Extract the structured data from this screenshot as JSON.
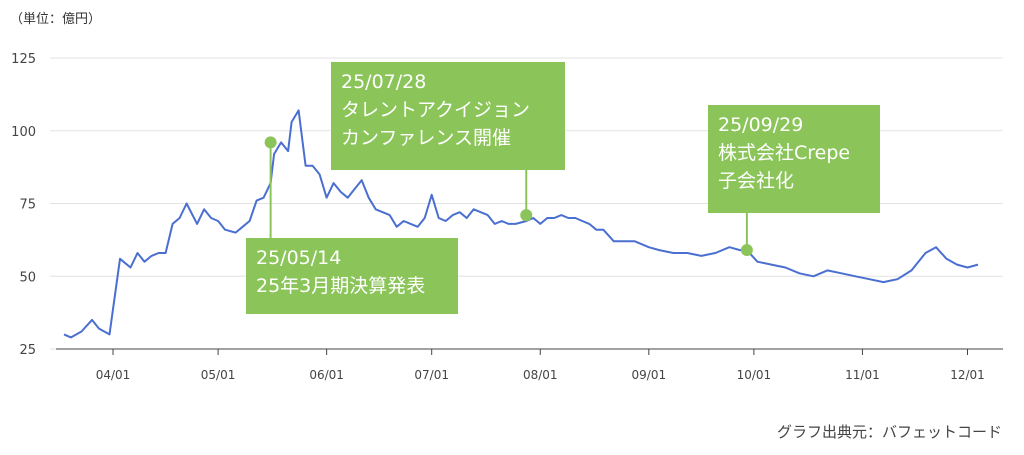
{
  "chart_data": {
    "type": "line",
    "unit_label": "（単位：億円）",
    "source": "グラフ出典元：バフェットコード",
    "ylim": [
      25,
      125
    ],
    "yticks": [
      25,
      50,
      75,
      100,
      125
    ],
    "xticks": [
      "04/01",
      "05/01",
      "06/01",
      "07/01",
      "08/01",
      "09/01",
      "10/01",
      "11/01",
      "12/01"
    ],
    "grid": true,
    "line_color": "#4a6fd0",
    "callout_color": "#8bc55a",
    "series": [
      {
        "x": [
          "03/18",
          "03/20",
          "03/23",
          "03/26",
          "03/28",
          "03/31",
          "04/03",
          "04/06",
          "04/08",
          "04/10",
          "04/12",
          "04/14",
          "04/16",
          "04/18",
          "04/20",
          "04/22",
          "04/25",
          "04/27",
          "04/29",
          "05/01",
          "05/03",
          "05/06",
          "05/08",
          "05/10",
          "05/12",
          "05/14",
          "05/16",
          "05/17",
          "05/19",
          "05/21",
          "05/22",
          "05/24",
          "05/26",
          "05/28",
          "05/30",
          "06/01",
          "06/03",
          "06/05",
          "06/07",
          "06/09",
          "06/11",
          "06/13",
          "06/15",
          "06/17",
          "06/19",
          "06/21",
          "06/23",
          "06/25",
          "06/27",
          "06/29",
          "07/01",
          "07/03",
          "07/05",
          "07/07",
          "07/09",
          "07/11",
          "07/13",
          "07/15",
          "07/17",
          "07/19",
          "07/21",
          "07/23",
          "07/25",
          "07/28",
          "07/30",
          "08/01",
          "08/03",
          "08/05",
          "08/07",
          "08/09",
          "08/11",
          "08/13",
          "08/15",
          "08/17",
          "08/19",
          "08/22",
          "08/25",
          "08/28",
          "09/01",
          "09/04",
          "09/08",
          "09/12",
          "09/16",
          "09/20",
          "09/24",
          "09/27",
          "09/29",
          "10/02",
          "10/06",
          "10/10",
          "10/14",
          "10/18",
          "10/22",
          "10/26",
          "10/30",
          "11/03",
          "11/07",
          "11/11",
          "11/15",
          "11/19",
          "11/22",
          "11/25",
          "11/28",
          "12/01",
          "12/04"
        ],
        "values": [
          30,
          29,
          31,
          35,
          32,
          30,
          56,
          53,
          58,
          55,
          57,
          58,
          58,
          68,
          70,
          75,
          68,
          73,
          70,
          69,
          66,
          65,
          67,
          69,
          76,
          77,
          82,
          92,
          96,
          93,
          103,
          107,
          88,
          88,
          85,
          77,
          82,
          79,
          77,
          80,
          83,
          77,
          73,
          72,
          71,
          67,
          69,
          68,
          67,
          70,
          78,
          70,
          69,
          71,
          72,
          70,
          73,
          72,
          71,
          68,
          69,
          68,
          68,
          69,
          70,
          68,
          70,
          70,
          71,
          70,
          70,
          69,
          68,
          66,
          66,
          62,
          62,
          62,
          60,
          59,
          58,
          58,
          57,
          58,
          60,
          59,
          59,
          55,
          54,
          53,
          51,
          50,
          52,
          51,
          50,
          49,
          48,
          49,
          52,
          58,
          60,
          56,
          54,
          53,
          54
        ]
      }
    ],
    "callouts": [
      {
        "lines": [
          "25/05/14",
          "25年3月期決算発表"
        ],
        "x": "05/16",
        "y": 96
      },
      {
        "lines": [
          "25/07/28",
          "タレントアクイジョン",
          "カンファレンス開催"
        ],
        "x": "07/28",
        "y": 71
      },
      {
        "lines": [
          "25/09/29",
          "株式会社Crepe",
          "子会社化"
        ],
        "x": "09/29",
        "y": 59
      }
    ]
  }
}
